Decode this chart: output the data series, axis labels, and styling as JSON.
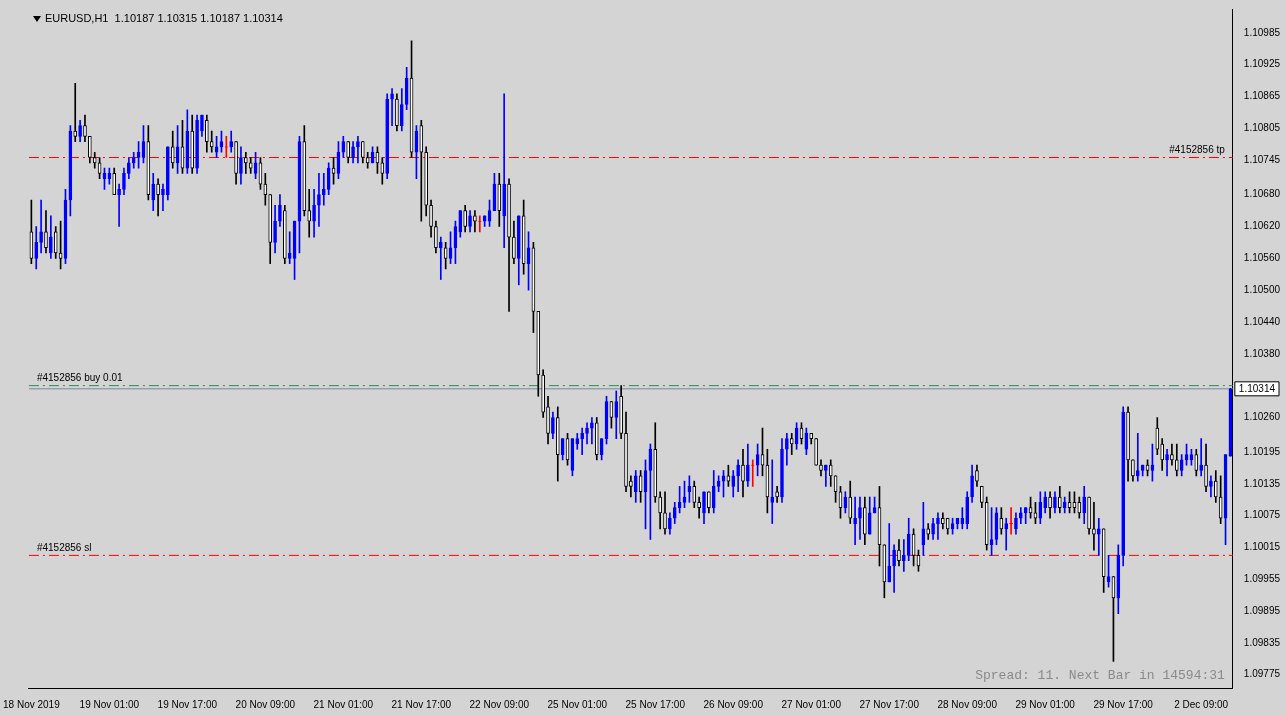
{
  "chart_data": {
    "type": "candlestick",
    "title": "EURUSD,H1  1.10187 1.10315 1.10187 1.10314",
    "categories": [
      "18 Nov 2019",
      null,
      null,
      null,
      null,
      null,
      null,
      null,
      null,
      null,
      null,
      null,
      null,
      null,
      null,
      null,
      "19 Nov 01:00",
      null,
      null,
      null,
      null,
      null,
      null,
      null,
      null,
      null,
      null,
      null,
      null,
      null,
      null,
      null,
      "19 Nov 17:00",
      null,
      null,
      null,
      null,
      null,
      null,
      null,
      null,
      null,
      null,
      null,
      null,
      null,
      null,
      null,
      "20 Nov 09:00",
      null,
      null,
      null,
      null,
      null,
      null,
      null,
      null,
      null,
      null,
      null,
      null,
      null,
      null,
      null,
      "21 Nov 01:00",
      null,
      null,
      null,
      null,
      null,
      null,
      null,
      null,
      null,
      null,
      null,
      null,
      null,
      null,
      null,
      "21 Nov 17:00",
      null,
      null,
      null,
      null,
      null,
      null,
      null,
      null,
      null,
      null,
      null,
      null,
      null,
      null,
      null,
      "22 Nov 09:00",
      null,
      null,
      null,
      null,
      null,
      null,
      null,
      null,
      null,
      null,
      null,
      null,
      null,
      null,
      null,
      "25 Nov 01:00",
      null,
      null,
      null,
      null,
      null,
      null,
      null,
      null,
      null,
      null,
      null,
      null,
      null,
      null,
      null,
      "25 Nov 17:00",
      null,
      null,
      null,
      null,
      null,
      null,
      null,
      null,
      null,
      null,
      null,
      null,
      null,
      null,
      null,
      "26 Nov 09:00",
      null,
      null,
      null,
      null,
      null,
      null,
      null,
      null,
      null,
      null,
      null,
      null,
      null,
      null,
      null,
      "27 Nov 01:00",
      null,
      null,
      null,
      null,
      null,
      null,
      null,
      null,
      null,
      null,
      null,
      null,
      null,
      null,
      null,
      "27 Nov 17:00",
      null,
      null,
      null,
      null,
      null,
      null,
      null,
      null,
      null,
      null,
      null,
      null,
      null,
      null,
      null,
      "28 Nov 09:00",
      null,
      null,
      null,
      null,
      null,
      null,
      null,
      null,
      null,
      null,
      null,
      null,
      null,
      null,
      null,
      "29 Nov 01:00",
      null,
      null,
      null,
      null,
      null,
      null,
      null,
      null,
      null,
      null,
      null,
      null,
      null,
      null,
      null,
      "29 Nov 17:00",
      null,
      null,
      null,
      null,
      null,
      null,
      null,
      null,
      null,
      null,
      null,
      null,
      null,
      null,
      null,
      "2 Dec 09:00",
      null,
      null,
      null,
      null,
      null,
      null
    ],
    "ohlc": [
      [
        1.1061,
        1.1067,
        1.1055,
        1.1056
      ],
      [
        1.1056,
        1.1062,
        1.1054,
        1.1059
      ],
      [
        1.1059,
        1.1067,
        1.1057,
        1.1061
      ],
      [
        1.1061,
        1.1065,
        1.1057,
        1.1058
      ],
      [
        1.1057,
        1.1064,
        1.1056,
        1.106
      ],
      [
        1.1061,
        1.1062,
        1.1056,
        1.1057
      ],
      [
        1.1057,
        1.1063,
        1.1054,
        1.1056
      ],
      [
        1.1056,
        1.1069,
        1.1055,
        1.1067
      ],
      [
        1.1067,
        1.1081,
        1.1064,
        1.108
      ],
      [
        1.108,
        1.1089,
        1.1078,
        1.1079
      ],
      [
        1.1079,
        1.1082,
        1.1078,
        1.1081
      ],
      [
        1.1081,
        1.1083,
        1.1078,
        1.1079
      ],
      [
        1.1079,
        1.1079,
        1.1074,
        1.1075
      ],
      [
        1.1075,
        1.1076,
        1.1073,
        1.1074
      ],
      [
        1.1074,
        1.1075,
        1.1071,
        1.1072
      ],
      [
        1.1071,
        1.1073,
        1.1069,
        1.1072
      ],
      [
        1.1071,
        1.1073,
        1.107,
        1.1072
      ],
      [
        1.1072,
        1.1073,
        1.1068,
        1.1068
      ],
      [
        1.1068,
        1.107,
        1.1062,
        1.1069
      ],
      [
        1.1069,
        1.1073,
        1.1068,
        1.1072
      ],
      [
        1.1072,
        1.1075,
        1.1071,
        1.1074
      ],
      [
        1.1074,
        1.1076,
        1.1073,
        1.1075
      ],
      [
        1.1075,
        1.1078,
        1.1073,
        1.1076
      ],
      [
        1.1075,
        1.1081,
        1.1074,
        1.1078
      ],
      [
        1.1078,
        1.1081,
        1.1067,
        1.1068
      ],
      [
        1.1067,
        1.1072,
        1.1065,
        1.107
      ],
      [
        1.107,
        1.1071,
        1.1064,
        1.1068
      ],
      [
        1.1068,
        1.107,
        1.1065,
        1.1069
      ],
      [
        1.1068,
        1.1077,
        1.1067,
        1.1077
      ],
      [
        1.1077,
        1.108,
        1.1073,
        1.1074
      ],
      [
        1.1074,
        1.1081,
        1.1072,
        1.1077
      ],
      [
        1.1077,
        1.1082,
        1.1072,
        1.1073
      ],
      [
        1.1073,
        1.1084,
        1.1072,
        1.108
      ],
      [
        1.108,
        1.1083,
        1.1072,
        1.1073
      ],
      [
        1.1073,
        1.1083,
        1.1072,
        1.1082
      ],
      [
        1.108,
        1.1083,
        1.1079,
        1.1083
      ],
      [
        1.1082,
        1.1083,
        1.1076,
        1.1078
      ],
      [
        1.1078,
        1.108,
        1.1076,
        1.1077
      ],
      [
        1.1076,
        1.1079,
        1.1075,
        1.1077
      ],
      [
        1.1077,
        1.108,
        1.1076,
        1.1078
      ],
      [
        1.1077,
        1.1079,
        1.1075,
        1.1077
      ],
      [
        1.1077,
        1.108,
        1.1076,
        1.1078
      ],
      [
        1.1078,
        1.1078,
        1.107,
        1.1072
      ],
      [
        1.1072,
        1.1077,
        1.107,
        1.1075
      ],
      [
        1.1075,
        1.1076,
        1.1072,
        1.1074
      ],
      [
        1.1074,
        1.1075,
        1.1072,
        1.1073
      ],
      [
        1.1072,
        1.1076,
        1.1071,
        1.1074
      ],
      [
        1.1074,
        1.1075,
        1.1069,
        1.107
      ],
      [
        1.107,
        1.1072,
        1.1066,
        1.1068
      ],
      [
        1.1068,
        1.1068,
        1.1055,
        1.1059
      ],
      [
        1.1059,
        1.1066,
        1.1057,
        1.1063
      ],
      [
        1.1063,
        1.1068,
        1.1062,
        1.1066
      ],
      [
        1.1065,
        1.1066,
        1.1055,
        1.1056
      ],
      [
        1.1056,
        1.1061,
        1.1055,
        1.1057
      ],
      [
        1.1056,
        1.1063,
        1.1052,
        1.1063
      ],
      [
        1.1063,
        1.1079,
        1.1057,
        1.1078
      ],
      [
        1.1078,
        1.1081,
        1.1064,
        1.1065
      ],
      [
        1.1065,
        1.1069,
        1.106,
        1.1063
      ],
      [
        1.1063,
        1.1069,
        1.106,
        1.1066
      ],
      [
        1.1066,
        1.1072,
        1.1062,
        1.1068
      ],
      [
        1.1068,
        1.1072,
        1.1066,
        1.1069
      ],
      [
        1.1069,
        1.1074,
        1.1068,
        1.1073
      ],
      [
        1.1073,
        1.1075,
        1.107,
        1.1072
      ],
      [
        1.1072,
        1.1078,
        1.1071,
        1.1076
      ],
      [
        1.1076,
        1.1079,
        1.1075,
        1.1078
      ],
      [
        1.1078,
        1.1078,
        1.1074,
        1.1075
      ],
      [
        1.1075,
        1.1078,
        1.1074,
        1.1077
      ],
      [
        1.1077,
        1.1079,
        1.1074,
        1.1078
      ],
      [
        1.1078,
        1.1078,
        1.1074,
        1.1075
      ],
      [
        1.1075,
        1.1076,
        1.1073,
        1.1074
      ],
      [
        1.1074,
        1.1077,
        1.1074,
        1.1076
      ],
      [
        1.1076,
        1.1077,
        1.1072,
        1.1074
      ],
      [
        1.1074,
        1.1075,
        1.107,
        1.1072
      ],
      [
        1.1072,
        1.1087,
        1.1071,
        1.1086
      ],
      [
        1.1086,
        1.1088,
        1.1081,
        1.1087
      ],
      [
        1.1086,
        1.1087,
        1.108,
        1.1081
      ],
      [
        1.1081,
        1.1088,
        1.108,
        1.1085
      ],
      [
        1.1085,
        1.1092,
        1.1084,
        1.109
      ],
      [
        1.109,
        1.1097,
        1.1075,
        1.1076
      ],
      [
        1.1076,
        1.1081,
        1.1071,
        1.108
      ],
      [
        1.1081,
        1.1082,
        1.1063,
        1.1076
      ],
      [
        1.1076,
        1.1077,
        1.1064,
        1.1066
      ],
      [
        1.1066,
        1.1067,
        1.106,
        1.1062
      ],
      [
        1.1062,
        1.1063,
        1.1057,
        1.1058
      ],
      [
        1.1058,
        1.106,
        1.1052,
        1.1059
      ],
      [
        1.1058,
        1.1059,
        1.1054,
        1.1056
      ],
      [
        1.1056,
        1.1061,
        1.1055,
        1.1058
      ],
      [
        1.1058,
        1.1063,
        1.1055,
        1.1062
      ],
      [
        1.1061,
        1.1065,
        1.106,
        1.1065
      ],
      [
        1.1065,
        1.1066,
        1.1061,
        1.1062
      ],
      [
        1.1062,
        1.1065,
        1.1061,
        1.1064
      ],
      [
        1.1064,
        1.1065,
        1.1061,
        1.1063
      ],
      [
        1.1063,
        1.1064,
        1.1061,
        1.1063
      ],
      [
        1.1063,
        1.1064,
        1.1062,
        1.1064
      ],
      [
        1.1063,
        1.1067,
        1.1062,
        1.1065
      ],
      [
        1.1065,
        1.1072,
        1.1065,
        1.107
      ],
      [
        1.107,
        1.1072,
        1.1062,
        1.1065
      ],
      [
        1.1064,
        1.1087,
        1.1058,
        1.107
      ],
      [
        1.107,
        1.1071,
        1.1046,
        1.106
      ],
      [
        1.106,
        1.1063,
        1.1055,
        1.1056
      ],
      [
        1.1056,
        1.1064,
        1.1051,
        1.1064
      ],
      [
        1.1064,
        1.1067,
        1.1053,
        1.1055
      ],
      [
        1.1055,
        1.1061,
        1.105,
        1.1058
      ],
      [
        1.1058,
        1.1059,
        1.1042,
        1.1046
      ],
      [
        1.1046,
        1.1046,
        1.103,
        1.1034
      ],
      [
        1.1034,
        1.1035,
        1.1026,
        1.1027
      ],
      [
        1.1028,
        1.103,
        1.1021,
        1.1023
      ],
      [
        1.1023,
        1.1027,
        1.1022,
        1.1026
      ],
      [
        1.1026,
        1.1028,
        1.1014,
        1.1019
      ],
      [
        1.1019,
        1.1022,
        1.1018,
        1.1022
      ],
      [
        1.1022,
        1.1023,
        1.1017,
        1.1018
      ],
      [
        1.1016,
        1.1022,
        1.1015,
        1.1022
      ],
      [
        1.1021,
        1.1023,
        1.102,
        1.1022
      ],
      [
        1.1022,
        1.1024,
        1.1019,
        1.1023
      ],
      [
        1.1023,
        1.1025,
        1.1021,
        1.1024
      ],
      [
        1.1024,
        1.1026,
        1.1021,
        1.1025
      ],
      [
        1.1025,
        1.1026,
        1.1018,
        1.1019
      ],
      [
        1.1019,
        1.1022,
        1.1018,
        1.1022
      ],
      [
        1.1022,
        1.103,
        1.1021,
        1.1029
      ],
      [
        1.1029,
        1.1029,
        1.1024,
        1.1026
      ],
      [
        1.1026,
        1.1031,
        1.1022,
        1.1029
      ],
      [
        1.103,
        1.1032,
        1.1022,
        1.1023
      ],
      [
        1.1023,
        1.1027,
        1.1012,
        1.1013
      ],
      [
        1.1014,
        1.1015,
        1.1011,
        1.1013
      ],
      [
        1.1012,
        1.1016,
        1.101,
        1.1015
      ],
      [
        1.1015,
        1.1016,
        1.101,
        1.1012
      ],
      [
        1.1012,
        1.1018,
        1.1005,
        1.1016
      ],
      [
        1.1016,
        1.1021,
        1.1003,
        1.102
      ],
      [
        1.102,
        1.1025,
        1.101,
        1.1011
      ],
      [
        1.1011,
        1.1012,
        1.1005,
        1.1008
      ],
      [
        1.1008,
        1.1012,
        1.1004,
        1.1005
      ],
      [
        1.1005,
        1.1008,
        1.1004,
        1.1007
      ],
      [
        1.1007,
        1.101,
        1.1006,
        1.1009
      ],
      [
        1.1009,
        1.1013,
        1.1008,
        1.101
      ],
      [
        1.101,
        1.1014,
        1.1009,
        1.1011
      ],
      [
        1.1012,
        1.1015,
        1.101,
        1.1013
      ],
      [
        1.1013,
        1.1014,
        1.1009,
        1.101
      ],
      [
        1.101,
        1.1011,
        1.1007,
        1.1009
      ],
      [
        1.1008,
        1.1012,
        1.1006,
        1.1012
      ],
      [
        1.1012,
        1.1012,
        1.1008,
        1.1009
      ],
      [
        1.1009,
        1.1016,
        1.1008,
        1.1013
      ],
      [
        1.1013,
        1.1015,
        1.1012,
        1.1014
      ],
      [
        1.1014,
        1.1016,
        1.1011,
        1.1015
      ],
      [
        1.1015,
        1.1017,
        1.1013,
        1.1014
      ],
      [
        1.1013,
        1.1016,
        1.1011,
        1.1015
      ],
      [
        1.1015,
        1.1018,
        1.1012,
        1.1017
      ],
      [
        1.1017,
        1.102,
        1.1011,
        1.1014
      ],
      [
        1.1014,
        1.1021,
        1.1013,
        1.1017
      ],
      [
        1.1017,
        1.1018,
        1.1013,
        1.1017
      ],
      [
        1.1017,
        1.1021,
        1.1015,
        1.1019
      ],
      [
        1.1019,
        1.1024,
        1.1015,
        1.1017
      ],
      [
        1.1017,
        1.102,
        1.1008,
        1.1011
      ],
      [
        1.101,
        1.1018,
        1.1006,
        1.1011
      ],
      [
        1.1012,
        1.1013,
        1.101,
        1.1011
      ],
      [
        1.1011,
        1.1022,
        1.101,
        1.102
      ],
      [
        1.102,
        1.1023,
        1.1017,
        1.1022
      ],
      [
        1.1022,
        1.1023,
        1.1019,
        1.1021
      ],
      [
        1.1021,
        1.1025,
        1.102,
        1.1024
      ],
      [
        1.1024,
        1.1025,
        1.1021,
        1.1022
      ],
      [
        1.102,
        1.1024,
        1.1019,
        1.1023
      ],
      [
        1.1023,
        1.1023,
        1.1021,
        1.1022
      ],
      [
        1.1022,
        1.1022,
        1.1017,
        1.1017
      ],
      [
        1.1017,
        1.1018,
        1.1015,
        1.1016
      ],
      [
        1.1016,
        1.1017,
        1.1013,
        1.1017
      ],
      [
        1.1017,
        1.1018,
        1.1013,
        1.1015
      ],
      [
        1.1015,
        1.1015,
        1.101,
        1.1012
      ],
      [
        1.1012,
        1.1013,
        1.1007,
        1.1009
      ],
      [
        1.1009,
        1.1012,
        1.1008,
        1.1011
      ],
      [
        1.1011,
        1.1014,
        1.1006,
        1.1007
      ],
      [
        1.1006,
        1.1011,
        1.1002,
        1.1007
      ],
      [
        1.1007,
        1.1011,
        1.1003,
        1.1009
      ],
      [
        1.1009,
        1.1011,
        1.1002,
        1.1004
      ],
      [
        1.1004,
        1.1011,
        1.1004,
        1.1008
      ],
      [
        1.1008,
        1.1011,
        1.1008,
        1.1009
      ],
      [
        1.1009,
        1.1013,
        1.0998,
        1.1002
      ],
      [
        1.1002,
        1.1002,
        1.0992,
        1.0995
      ],
      [
        1.0995,
        1.1006,
        1.0995,
        1.0998
      ],
      [
        1.0998,
        1.1002,
        1.0993,
        1.1001
      ],
      [
        1.1001,
        1.1003,
        1.0998,
        1.0999
      ],
      [
        1.0999,
        1.1003,
        1.0997,
        1.1
      ],
      [
        1.1,
        1.1007,
        1.0999,
        1.1004
      ],
      [
        1.1004,
        1.1005,
        1.0998,
        1.1
      ],
      [
        1.1,
        1.1001,
        1.0997,
        1.0998
      ],
      [
        1.1002,
        1.101,
        1.1,
        1.1005
      ],
      [
        1.1005,
        1.1006,
        1.1003,
        1.1004
      ],
      [
        1.1004,
        1.1007,
        1.1003,
        1.1006
      ],
      [
        1.1006,
        1.1008,
        1.1003,
        1.1007
      ],
      [
        1.1007,
        1.1008,
        1.1005,
        1.1006
      ],
      [
        1.1007,
        1.1007,
        1.1004,
        1.1005
      ],
      [
        1.1005,
        1.1007,
        1.1004,
        1.1006
      ],
      [
        1.1006,
        1.1007,
        1.1005,
        1.1007
      ],
      [
        1.1006,
        1.1009,
        1.1005,
        1.1007
      ],
      [
        1.1006,
        1.1012,
        1.1005,
        1.1011
      ],
      [
        1.1011,
        1.1017,
        1.101,
        1.1015
      ],
      [
        1.1016,
        1.1017,
        1.1013,
        1.1014
      ],
      [
        1.1013,
        1.1013,
        1.1009,
        1.101
      ],
      [
        1.101,
        1.1011,
        1.1001,
        1.1002
      ],
      [
        1.1002,
        1.1009,
        1.1,
        1.1003
      ],
      [
        1.1003,
        1.1009,
        1.1002,
        1.1008
      ],
      [
        1.1007,
        1.1009,
        1.1004,
        1.1005
      ],
      [
        1.1005,
        1.1007,
        1.1001,
        1.1006
      ],
      [
        1.1006,
        1.1009,
        1.1004,
        1.1006
      ],
      [
        1.1005,
        1.1008,
        1.1004,
        1.1007
      ],
      [
        1.1007,
        1.1009,
        1.1006,
        1.1008
      ],
      [
        1.1008,
        1.1009,
        1.1006,
        1.1009
      ],
      [
        1.1009,
        1.1011,
        1.1007,
        1.1008
      ],
      [
        1.1008,
        1.101,
        1.1006,
        1.1007
      ],
      [
        1.1007,
        1.1012,
        1.1006,
        1.101
      ],
      [
        1.1009,
        1.1012,
        1.1008,
        1.1011
      ],
      [
        1.1011,
        1.1012,
        1.1007,
        1.1009
      ],
      [
        1.1009,
        1.1012,
        1.1008,
        1.1011
      ],
      [
        1.1011,
        1.1013,
        1.1008,
        1.1009
      ],
      [
        1.1009,
        1.1011,
        1.1008,
        1.101
      ],
      [
        1.101,
        1.1012,
        1.1008,
        1.1009
      ],
      [
        1.101,
        1.1012,
        1.1008,
        1.1009
      ],
      [
        1.101,
        1.1011,
        1.1007,
        1.1008
      ],
      [
        1.1008,
        1.1013,
        1.1006,
        1.1011
      ],
      [
        1.1011,
        1.1011,
        1.1004,
        1.1005
      ],
      [
        1.1005,
        1.101,
        1.1001,
        1.1004
      ],
      [
        1.1004,
        1.1007,
        1.1,
        1.1005
      ],
      [
        1.1005,
        1.1005,
        1.0993,
        1.0996
      ],
      [
        1.0995,
        1.1,
        1.0994,
        1.0996
      ],
      [
        1.0996,
        1.0996,
        1.098,
        1.0992
      ],
      [
        1.0992,
        1.1002,
        1.0989,
        1.1
      ],
      [
        1.1,
        1.1028,
        1.0998,
        1.1027
      ],
      [
        1.1027,
        1.1028,
        1.1014,
        1.1018
      ],
      [
        1.1018,
        1.1018,
        1.1014,
        1.1015
      ],
      [
        1.1015,
        1.1023,
        1.1014,
        1.1016
      ],
      [
        1.1016,
        1.1017,
        1.1015,
        1.1017
      ],
      [
        1.1017,
        1.1018,
        1.1015,
        1.1016
      ],
      [
        1.1016,
        1.1021,
        1.1014,
        1.1017
      ],
      [
        1.1024,
        1.1026,
        1.1019,
        1.102
      ],
      [
        1.1021,
        1.1022,
        1.1016,
        1.1018
      ],
      [
        1.1018,
        1.102,
        1.1015,
        1.1019
      ],
      [
        1.1019,
        1.1021,
        1.1017,
        1.1018
      ],
      [
        1.1018,
        1.1021,
        1.1015,
        1.1016
      ],
      [
        1.1016,
        1.1019,
        1.1015,
        1.1018
      ],
      [
        1.1018,
        1.1021,
        1.1017,
        1.1019
      ],
      [
        1.1018,
        1.102,
        1.1017,
        1.1019
      ],
      [
        1.1019,
        1.102,
        1.1015,
        1.1016
      ],
      [
        1.1016,
        1.1022,
        1.1015,
        1.1017
      ],
      [
        1.1017,
        1.1021,
        1.1012,
        1.1013
      ],
      [
        1.1013,
        1.1015,
        1.1011,
        1.1014
      ],
      [
        1.1014,
        1.1016,
        1.101,
        1.1011
      ],
      [
        1.1011,
        1.1015,
        1.1006,
        1.1007
      ],
      [
        1.1007,
        1.1019,
        1.1002,
        1.1019
      ],
      [
        1.10187,
        1.10315,
        1.10187,
        1.10314
      ]
    ],
    "ylim": [
      1.0975,
      1.1103
    ],
    "yticks": [
      1.10985,
      1.10925,
      1.10865,
      1.10805,
      1.10745,
      {
        "value": 1.1068,
        "label": "1.10680"
      },
      {
        "value": 1.1062,
        "label": "1.10620"
      },
      {
        "value": 1.1056,
        "label": "1.10560"
      },
      {
        "value": 1.105,
        "label": "1.10500"
      },
      {
        "value": 1.1044,
        "label": "1.10440"
      },
      {
        "value": 1.1038,
        "label": "1.10380"
      },
      {
        "value": 1.1026,
        "label": "1.10260"
      },
      1.10195,
      1.10135,
      1.10075,
      1.10015,
      1.09955,
      1.09895,
      1.09835,
      1.09775
    ],
    "ref_lines": [
      {
        "axis": "y",
        "value": 1.1075,
        "label": "#4152856 tp",
        "color": "#ff0000",
        "line_style": "dashed"
      },
      {
        "axis": "y",
        "value": 1.1032,
        "label": "#4152856 buy 0.01",
        "color": "#2e8b57",
        "line_style": "dashed"
      },
      {
        "axis": "y",
        "value": 1.10314,
        "label": "1.10314",
        "color": "#778899",
        "line_style": "solid"
      },
      {
        "axis": "y",
        "value": 1.1,
        "label": "#4152856 sl",
        "color": "#ff0000",
        "line_style": "dashed"
      }
    ],
    "annotations": [
      "Spread: 11. Next Bar in 14594:31"
    ]
  }
}
